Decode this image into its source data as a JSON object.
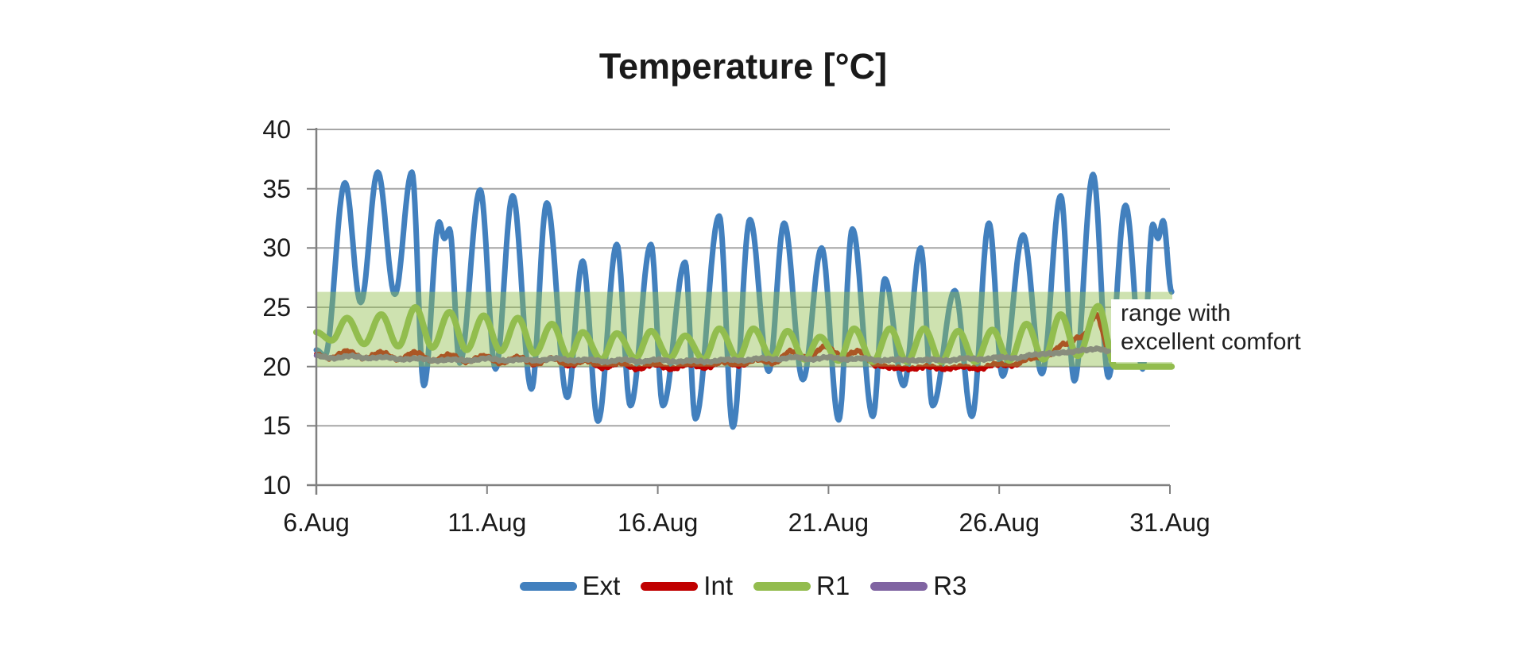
{
  "page": {
    "background": "#FFFFFF"
  },
  "chart": {
    "title": "Temperature [°C]",
    "annotation": {
      "line1": "range with",
      "line2": "excellent comfort"
    }
  },
  "colors": {
    "grid": "#A6A6A6",
    "axis": "#808080",
    "text": "#1A1A1A"
  },
  "chart_data": {
    "type": "line",
    "title": "Temperature [°C]",
    "xlabel": "",
    "ylabel": "Temperature [°C]",
    "grid": true,
    "x_axis": {
      "tick_labels": [
        "6.Aug",
        "11.Aug",
        "16.Aug",
        "21.Aug",
        "26.Aug",
        "31.Aug"
      ],
      "tick_days": [
        0,
        5,
        10,
        15,
        20,
        25
      ],
      "range_days": [
        0,
        25
      ]
    },
    "y_axis": {
      "ticks": [
        10,
        15,
        20,
        25,
        30,
        35,
        40
      ],
      "range": [
        10,
        40
      ]
    },
    "comfort_band": {
      "from": 20,
      "to": 26.3,
      "label": "range with excellent comfort",
      "fill": "#92BE50",
      "fill_alpha": 0.45
    },
    "legend": {
      "position": "bottom",
      "entries": [
        "Ext",
        "Int",
        "R1",
        "R3"
      ]
    },
    "series": [
      {
        "name": "Ext",
        "color": "#4280BE",
        "width": 7,
        "jitter": 0,
        "points": [
          [
            0,
            21.4
          ],
          [
            0.25,
            20.9
          ],
          [
            0.84,
            35.5
          ],
          [
            1.3,
            25.4
          ],
          [
            1.8,
            36.4
          ],
          [
            2.3,
            26.1
          ],
          [
            2.8,
            36.4
          ],
          [
            3.15,
            18.4
          ],
          [
            3.6,
            32.2
          ],
          [
            3.75,
            30.8
          ],
          [
            3.9,
            31.6
          ],
          [
            4.2,
            20.3
          ],
          [
            4.8,
            34.9
          ],
          [
            5.25,
            19.8
          ],
          [
            5.75,
            34.4
          ],
          [
            6.3,
            18.1
          ],
          [
            6.75,
            33.8
          ],
          [
            7.35,
            17.4
          ],
          [
            7.8,
            28.9
          ],
          [
            8.25,
            15.4
          ],
          [
            8.8,
            30.3
          ],
          [
            9.2,
            16.7
          ],
          [
            9.8,
            30.3
          ],
          [
            10.15,
            16.7
          ],
          [
            10.8,
            28.8
          ],
          [
            11.1,
            15.6
          ],
          [
            11.8,
            32.7
          ],
          [
            12.2,
            14.9
          ],
          [
            12.7,
            32.4
          ],
          [
            13.25,
            19.6
          ],
          [
            13.7,
            32.1
          ],
          [
            14.25,
            18.9
          ],
          [
            14.8,
            30.0
          ],
          [
            15.3,
            15.5
          ],
          [
            15.7,
            31.6
          ],
          [
            16.3,
            15.8
          ],
          [
            16.65,
            27.4
          ],
          [
            17.2,
            18.4
          ],
          [
            17.7,
            30.0
          ],
          [
            18.05,
            16.7
          ],
          [
            18.7,
            26.4
          ],
          [
            19.2,
            15.8
          ],
          [
            19.7,
            32.1
          ],
          [
            20.1,
            19.2
          ],
          [
            20.7,
            31.1
          ],
          [
            21.25,
            19.4
          ],
          [
            21.8,
            34.4
          ],
          [
            22.2,
            18.8
          ],
          [
            22.75,
            36.2
          ],
          [
            23.2,
            19.1
          ],
          [
            23.7,
            33.6
          ],
          [
            24.2,
            19.8
          ],
          [
            24.5,
            32.0
          ],
          [
            24.65,
            30.8
          ],
          [
            24.8,
            32.3
          ],
          [
            25.05,
            26.3
          ]
        ]
      },
      {
        "name": "Int",
        "color": "#C00000",
        "width": 6,
        "jitter": 0.07,
        "points": [
          [
            0,
            21.0
          ],
          [
            0.4,
            20.7
          ],
          [
            0.9,
            21.3
          ],
          [
            1.4,
            20.7
          ],
          [
            1.9,
            21.2
          ],
          [
            2.4,
            20.6
          ],
          [
            2.9,
            21.2
          ],
          [
            3.4,
            20.5
          ],
          [
            3.9,
            21.0
          ],
          [
            4.4,
            20.4
          ],
          [
            4.9,
            20.9
          ],
          [
            5.4,
            20.3
          ],
          [
            5.9,
            20.8
          ],
          [
            6.4,
            20.2
          ],
          [
            6.9,
            20.7
          ],
          [
            7.4,
            20.1
          ],
          [
            7.9,
            20.5
          ],
          [
            8.4,
            19.9
          ],
          [
            8.9,
            20.3
          ],
          [
            9.4,
            19.8
          ],
          [
            9.9,
            20.2
          ],
          [
            10.4,
            19.8
          ],
          [
            10.9,
            20.2
          ],
          [
            11.4,
            19.9
          ],
          [
            11.9,
            20.4
          ],
          [
            12.4,
            20.1
          ],
          [
            12.9,
            20.6
          ],
          [
            13.4,
            20.3
          ],
          [
            13.9,
            21.3
          ],
          [
            14.4,
            20.7
          ],
          [
            14.9,
            21.7
          ],
          [
            15.4,
            20.9
          ],
          [
            15.9,
            21.3
          ],
          [
            16.4,
            20.1
          ],
          [
            16.9,
            19.9
          ],
          [
            17.4,
            19.8
          ],
          [
            17.9,
            20.0
          ],
          [
            18.4,
            19.8
          ],
          [
            18.9,
            20.0
          ],
          [
            19.4,
            19.8
          ],
          [
            19.9,
            20.2
          ],
          [
            20.4,
            20.1
          ],
          [
            20.9,
            20.7
          ],
          [
            21.4,
            20.9
          ],
          [
            21.9,
            21.9
          ],
          [
            22.4,
            22.5
          ],
          [
            22.85,
            24.3
          ],
          [
            23.2,
            21.5
          ]
        ]
      },
      {
        "name": "R1",
        "color": "#93BC4E",
        "width": 8,
        "jitter": 0,
        "points": [
          [
            0,
            22.9
          ],
          [
            0.45,
            22.2
          ],
          [
            0.9,
            24.1
          ],
          [
            1.4,
            21.9
          ],
          [
            1.9,
            24.4
          ],
          [
            2.4,
            21.7
          ],
          [
            2.9,
            25.0
          ],
          [
            3.4,
            21.6
          ],
          [
            3.9,
            24.6
          ],
          [
            4.4,
            21.4
          ],
          [
            4.9,
            24.3
          ],
          [
            5.4,
            21.3
          ],
          [
            5.9,
            24.1
          ],
          [
            6.4,
            21.1
          ],
          [
            6.9,
            23.6
          ],
          [
            7.4,
            20.8
          ],
          [
            7.8,
            22.9
          ],
          [
            8.35,
            20.6
          ],
          [
            8.8,
            22.8
          ],
          [
            9.35,
            20.7
          ],
          [
            9.8,
            23.0
          ],
          [
            10.35,
            20.7
          ],
          [
            10.8,
            22.6
          ],
          [
            11.35,
            20.6
          ],
          [
            11.8,
            23.2
          ],
          [
            12.35,
            20.7
          ],
          [
            12.8,
            23.2
          ],
          [
            13.35,
            20.7
          ],
          [
            13.8,
            23.0
          ],
          [
            14.3,
            20.6
          ],
          [
            14.75,
            22.5
          ],
          [
            15.3,
            20.5
          ],
          [
            15.75,
            23.2
          ],
          [
            16.3,
            20.4
          ],
          [
            16.8,
            23.2
          ],
          [
            17.3,
            20.4
          ],
          [
            17.8,
            23.2
          ],
          [
            18.3,
            20.4
          ],
          [
            18.8,
            23.0
          ],
          [
            19.3,
            20.4
          ],
          [
            19.8,
            23.1
          ],
          [
            20.3,
            20.5
          ],
          [
            20.8,
            23.6
          ],
          [
            21.3,
            20.6
          ],
          [
            21.8,
            24.4
          ],
          [
            22.3,
            20.9
          ],
          [
            22.9,
            25.1
          ],
          [
            23.4,
            20.0
          ],
          [
            25.05,
            20.0
          ]
        ]
      },
      {
        "name": "R3",
        "color": "#8064A2",
        "width": 6.5,
        "jitter": 0.05,
        "points": [
          [
            0,
            20.9
          ],
          [
            0.5,
            20.7
          ],
          [
            1,
            20.9
          ],
          [
            1.5,
            20.7
          ],
          [
            2,
            20.8
          ],
          [
            2.5,
            20.6
          ],
          [
            3,
            20.7
          ],
          [
            3.5,
            20.5
          ],
          [
            4,
            20.6
          ],
          [
            4.5,
            20.5
          ],
          [
            5,
            20.7
          ],
          [
            5.5,
            20.5
          ],
          [
            6,
            20.6
          ],
          [
            6.5,
            20.5
          ],
          [
            7,
            20.7
          ],
          [
            7.5,
            20.5
          ],
          [
            8,
            20.6
          ],
          [
            8.5,
            20.4
          ],
          [
            9,
            20.6
          ],
          [
            9.5,
            20.4
          ],
          [
            10,
            20.6
          ],
          [
            10.5,
            20.4
          ],
          [
            11,
            20.5
          ],
          [
            11.5,
            20.4
          ],
          [
            12,
            20.6
          ],
          [
            12.5,
            20.5
          ],
          [
            13,
            20.7
          ],
          [
            13.5,
            20.6
          ],
          [
            14,
            20.8
          ],
          [
            14.5,
            20.6
          ],
          [
            15,
            20.8
          ],
          [
            15.5,
            20.6
          ],
          [
            16,
            20.7
          ],
          [
            16.5,
            20.5
          ],
          [
            17,
            20.6
          ],
          [
            17.5,
            20.5
          ],
          [
            18,
            20.6
          ],
          [
            18.5,
            20.5
          ],
          [
            19,
            20.7
          ],
          [
            19.5,
            20.6
          ],
          [
            20,
            20.8
          ],
          [
            20.5,
            20.7
          ],
          [
            21,
            21.0
          ],
          [
            21.5,
            21.1
          ],
          [
            22,
            21.2
          ],
          [
            22.5,
            21.4
          ],
          [
            22.9,
            21.5
          ],
          [
            23.2,
            21.3
          ]
        ]
      }
    ]
  }
}
